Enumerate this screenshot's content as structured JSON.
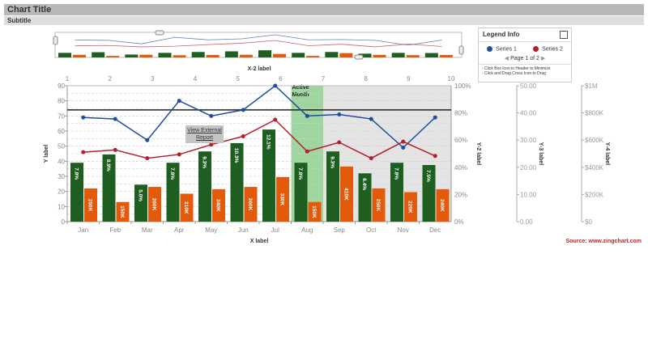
{
  "header": {
    "title": "Chart Title",
    "subtitle": "Subtitle"
  },
  "legend": {
    "title": "Legend Info",
    "items": [
      {
        "label": "Series 1",
        "color": "#1f4e9c"
      },
      {
        "label": "Series 2",
        "color": "#b3202a"
      }
    ],
    "pager": "Page 1 of 2",
    "notes": [
      "- Click Box Icon in Header to Minimize",
      "- Click and Drag Cross Icon to Drag"
    ]
  },
  "tooltip": {
    "line1": "View External",
    "line2": "Report"
  },
  "source": "Source: www.zingchart.com",
  "chart_data": {
    "type": "bar",
    "xlabel": "X label",
    "x2label": "X-2 label",
    "ylabel": "Y label",
    "y2label": "Y-2 label",
    "y3label": "Y-3 label",
    "y4label": "Y-4 label",
    "categories": [
      "Jan",
      "Feb",
      "Mar",
      "Apr",
      "May",
      "Jun",
      "Jul",
      "Aug",
      "Sep",
      "Oct",
      "Nov",
      "Dec"
    ],
    "x2_ticks": [
      "1",
      "2",
      "3",
      "4",
      "5",
      "6",
      "7",
      "8",
      "9",
      "10"
    ],
    "ylim": [
      0,
      90
    ],
    "y_ticks": [
      0,
      10,
      20,
      30,
      40,
      50,
      60,
      70,
      80,
      90
    ],
    "y2_ticks": [
      "0%",
      "20%",
      "40%",
      "60%",
      "80%",
      "100%"
    ],
    "y3_ticks": [
      "0.00",
      "10.00",
      "20.00",
      "30.00",
      "40.00",
      "50.00"
    ],
    "y4_ticks": [
      "$0",
      "$200K",
      "$400K",
      "$600K",
      "$800K",
      "$1M"
    ],
    "bars": [
      {
        "color": "#1e5e20",
        "values": [
          39,
          44.5,
          24.5,
          39,
          46.5,
          52,
          61,
          39,
          46.5,
          32,
          39,
          37.5
        ],
        "labels": [
          "7.8%",
          "8.9%",
          "5.0%",
          "7.8%",
          "9.3%",
          "10.3%",
          "12.1%",
          "7.8%",
          "9.3%",
          "6.4%",
          "7.8%",
          "7.5%"
        ]
      },
      {
        "color": "#e35a0a",
        "values": [
          22,
          13,
          23,
          18.5,
          21.5,
          23,
          29.5,
          13,
          36.5,
          22,
          19.5,
          21.5
        ],
        "labels": [
          "250K",
          "150K",
          "260K",
          "210K",
          "240K",
          "260K",
          "330K",
          "150K",
          "410K",
          "250K",
          "220K",
          "240K"
        ]
      }
    ],
    "series": [
      {
        "name": "Series 1",
        "color": "#1f4e9c",
        "values": [
          69,
          68,
          54,
          80,
          70,
          74,
          90,
          70,
          71,
          68,
          49,
          69
        ]
      },
      {
        "name": "Series 2",
        "color": "#b3202a",
        "values": [
          46,
          47.5,
          42,
          44.5,
          51,
          56.5,
          67.5,
          46.5,
          52.5,
          42,
          53,
          43.5
        ]
      }
    ],
    "marker_line": 74,
    "active_band": {
      "category": "Aug",
      "label": [
        "Active",
        "Month"
      ],
      "color": "#9fd69f"
    },
    "shaded_range": [
      "Sep",
      "Dec"
    ],
    "grid": true
  }
}
